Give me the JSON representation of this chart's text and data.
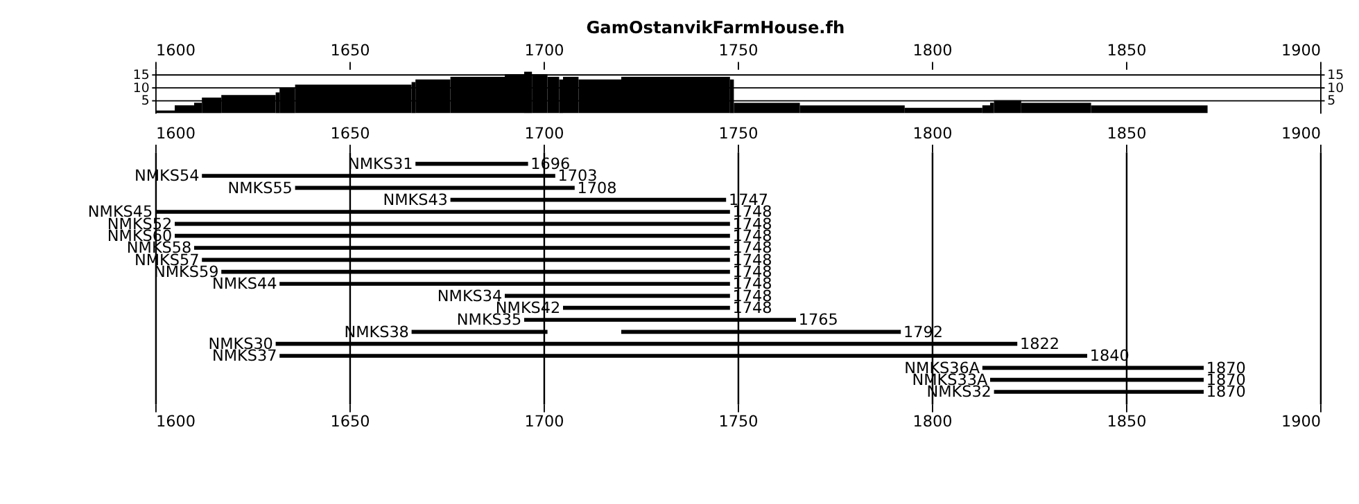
{
  "chart_data": [
    {
      "type": "histogram",
      "title": "GamOstanvikFarmHouse.fh",
      "bins": [
        1600,
        1605,
        1610,
        1612,
        1617,
        1631,
        1632,
        1636,
        1666,
        1667,
        1676,
        1690,
        1695,
        1697,
        1701,
        1704,
        1705,
        1709,
        1720,
        1748,
        1749,
        1766,
        1793,
        1813,
        1815,
        1816,
        1823,
        1841,
        1871
      ],
      "values": [
        1,
        3,
        4,
        6,
        7,
        8,
        10,
        11,
        12,
        13,
        14,
        15,
        16,
        15,
        14,
        13,
        14,
        13,
        14,
        13,
        4,
        3,
        2,
        3,
        4,
        5,
        4,
        3
      ],
      "color": "#000000",
      "xlim": [
        1600,
        1900
      ],
      "xticks": [
        1600,
        1650,
        1700,
        1750,
        1800,
        1850,
        1900
      ],
      "ylim": [
        0,
        17
      ],
      "yticks": [
        5,
        10,
        15
      ],
      "y2lim": [
        0,
        17
      ],
      "y2ticks": [
        5,
        10,
        15
      ],
      "grid": "y"
    },
    {
      "type": "bar",
      "orientation": "horizontal",
      "categories": [
        "NMKS31",
        "NMKS54",
        "NMKS55",
        "NMKS43",
        "NMKS45",
        "NMKS52",
        "NMKS60",
        "NMKS58",
        "NMKS57",
        "NMKS59",
        "NMKS44",
        "NMKS34",
        "NMKS42",
        "NMKS35",
        "NMKS38",
        "NMKS30",
        "NMKS37",
        "NMKS36A",
        "NMKS33A",
        "NMKS32"
      ],
      "series": [
        {
          "color": "#000000",
          "base": [
            1667,
            1612,
            1636,
            1676,
            1600,
            1605,
            1605,
            1610,
            1612,
            1617,
            1632,
            1690,
            1705,
            1695,
            1666,
            1631,
            1632,
            1813,
            1815,
            1816
          ],
          "values": [
            29,
            91,
            72,
            71,
            148,
            143,
            143,
            138,
            136,
            131,
            116,
            58,
            43,
            70,
            35,
            191,
            208,
            57,
            55,
            54
          ],
          "value_labels": [
            "1696",
            "1703",
            "1708",
            "1747",
            "1748",
            "1748",
            "1748",
            "1748",
            "1748",
            "1748",
            "1748",
            "1748",
            "1748",
            "1765",
            null,
            "1822",
            "1840",
            "1870",
            "1870",
            "1870"
          ]
        },
        {
          "color": "#000000",
          "base": [
            null,
            null,
            null,
            null,
            null,
            null,
            null,
            null,
            null,
            null,
            null,
            null,
            null,
            null,
            1720,
            null,
            null,
            null,
            null,
            null
          ],
          "values": [
            null,
            null,
            null,
            null,
            null,
            null,
            null,
            null,
            null,
            null,
            null,
            null,
            null,
            null,
            72,
            null,
            null,
            null,
            null,
            null
          ],
          "value_labels": [
            null,
            null,
            null,
            null,
            null,
            null,
            null,
            null,
            null,
            null,
            null,
            null,
            null,
            null,
            "1792",
            null,
            null,
            null,
            null,
            null
          ]
        }
      ],
      "xlim": [
        1600,
        1900
      ],
      "xticks": [
        1600,
        1650,
        1700,
        1750,
        1800,
        1850,
        1900
      ],
      "x2lim": [
        1600,
        1900
      ],
      "x2ticks": [
        1600,
        1650,
        1700,
        1750,
        1800,
        1850,
        1900
      ],
      "grid": "x"
    }
  ]
}
